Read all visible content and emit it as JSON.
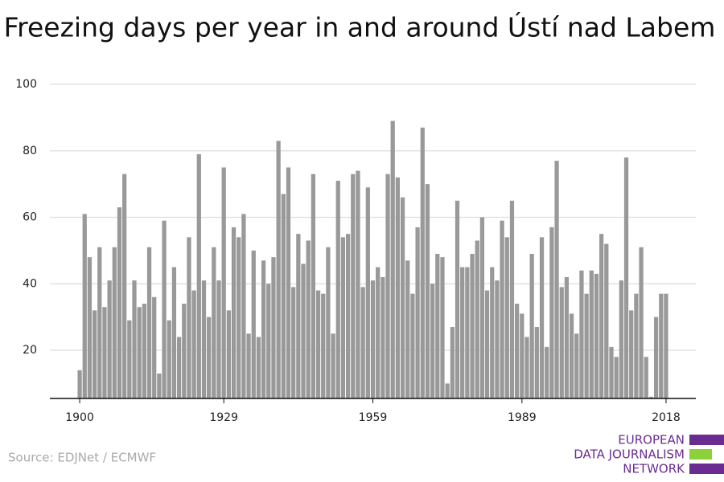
{
  "chart_data": {
    "type": "bar",
    "title": "Freezing days per year in and around Ústí nad Labem",
    "x": [
      1900,
      1901,
      1902,
      1903,
      1904,
      1905,
      1906,
      1907,
      1908,
      1909,
      1910,
      1911,
      1912,
      1913,
      1914,
      1915,
      1916,
      1917,
      1918,
      1919,
      1920,
      1921,
      1922,
      1923,
      1924,
      1925,
      1926,
      1927,
      1928,
      1929,
      1930,
      1931,
      1932,
      1933,
      1934,
      1935,
      1936,
      1937,
      1938,
      1939,
      1940,
      1941,
      1942,
      1943,
      1944,
      1945,
      1946,
      1947,
      1948,
      1949,
      1950,
      1951,
      1952,
      1953,
      1954,
      1955,
      1956,
      1957,
      1958,
      1959,
      1960,
      1961,
      1962,
      1963,
      1964,
      1965,
      1966,
      1967,
      1968,
      1969,
      1970,
      1971,
      1972,
      1973,
      1974,
      1975,
      1976,
      1977,
      1978,
      1979,
      1980,
      1981,
      1982,
      1983,
      1984,
      1985,
      1986,
      1987,
      1988,
      1989,
      1990,
      1991,
      1992,
      1993,
      1994,
      1995,
      1996,
      1997,
      1998,
      1999,
      2000,
      2001,
      2002,
      2003,
      2004,
      2005,
      2006,
      2007,
      2008,
      2009,
      2010,
      2011,
      2012,
      2013,
      2014,
      2015,
      2016,
      2017,
      2018
    ],
    "values": [
      14,
      61,
      48,
      32,
      51,
      33,
      41,
      51,
      63,
      73,
      29,
      41,
      33,
      34,
      51,
      36,
      13,
      59,
      29,
      45,
      24,
      34,
      54,
      38,
      79,
      41,
      30,
      51,
      41,
      75,
      32,
      57,
      54,
      61,
      25,
      50,
      24,
      47,
      40,
      48,
      83,
      67,
      75,
      39,
      55,
      46,
      53,
      73,
      38,
      37,
      51,
      25,
      71,
      54,
      55,
      73,
      74,
      39,
      69,
      41,
      45,
      42,
      73,
      89,
      72,
      66,
      47,
      37,
      57,
      87,
      70,
      40,
      49,
      48,
      10,
      27,
      65,
      45,
      45,
      49,
      53,
      60,
      38,
      45,
      41,
      59,
      54,
      65,
      34,
      31,
      24,
      49,
      27,
      54,
      21,
      57,
      77,
      39,
      42,
      31,
      25,
      44,
      37,
      44,
      43,
      55,
      52,
      21,
      18,
      41,
      78,
      32,
      37,
      51,
      18,
      6,
      30,
      37,
      37
    ],
    "color": "#999999",
    "xlim": [
      1894,
      2024
    ],
    "xticks": [
      1900,
      1929,
      1959,
      1989,
      2018
    ],
    "ylim": [
      5.5,
      100
    ],
    "yticks": [
      20,
      40,
      60,
      80,
      100
    ],
    "grid": true,
    "source": "Source: EDJNet / ECMWF",
    "logo": [
      "EUROPEAN",
      "DATA JOURNALISM",
      "NETWORK"
    ]
  }
}
